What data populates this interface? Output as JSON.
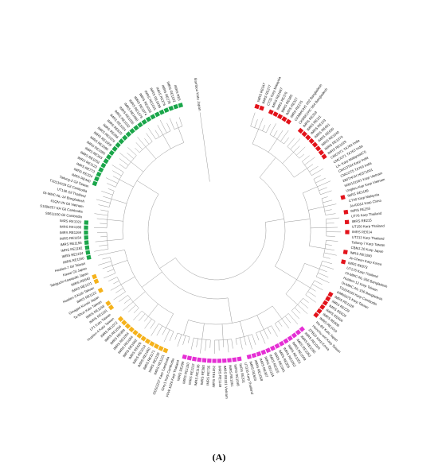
{
  "figure": {
    "panel_label": "(A)",
    "root_label": "Bamboo Katu Japan",
    "colors": {
      "green": "#1aa64a",
      "red": "#e3131b",
      "orange": "#f5b21b",
      "magenta": "#e52fd4",
      "branch": "#8c8c8c",
      "text": "#1a1a1a"
    },
    "leaves": [
      {
        "label": "IMRS RE347",
        "marker": "red"
      },
      {
        "label": "IMRS RE277",
        "marker": "red"
      },
      {
        "label": "CT32 Karp Malaysia",
        "marker": ""
      },
      {
        "label": "IMRS RE1067",
        "marker": "red"
      },
      {
        "label": "IMRS RE376",
        "marker": "red"
      },
      {
        "label": "IMRS RE385",
        "marker": "red"
      },
      {
        "label": "IMRS RE327",
        "marker": "red"
      },
      {
        "label": "IMRS RE275",
        "marker": "red"
      },
      {
        "label": "CKMMC/HC 002 Bangladesh",
        "marker": ""
      },
      {
        "label": "CKMMC/HC 004 Bangladesh",
        "marker": ""
      },
      {
        "label": "IMRS RE318",
        "marker": "red"
      },
      {
        "label": "IMRS RE111",
        "marker": "red"
      },
      {
        "label": "IMRS RE103",
        "marker": "red"
      },
      {
        "label": "IMRS RE601",
        "marker": "red"
      },
      {
        "label": "IMRS RE630",
        "marker": "red"
      },
      {
        "label": "IMRS RE1040",
        "marker": "red"
      },
      {
        "label": "IMRS RE1079",
        "marker": "red"
      },
      {
        "label": "IMRS RE1029",
        "marker": "red"
      },
      {
        "label": "CMCOT1 TA763 India",
        "marker": ""
      },
      {
        "label": "CMCOT1 TA763 India",
        "marker": ""
      },
      {
        "label": "LA- Karp Malaysia(CI)",
        "marker": ""
      },
      {
        "label": "CMCOT04 Karp India",
        "marker": ""
      },
      {
        "label": "CMCOT5 TA763 India",
        "marker": ""
      },
      {
        "label": "280TH/JH H0371001",
        "marker": ""
      },
      {
        "label": "S06/101001 Karp Vietnam",
        "marker": ""
      },
      {
        "label": "Ungkeu Kep Karp Vietnam",
        "marker": ""
      },
      {
        "label": "IMRS RE1189",
        "marker": "red"
      },
      {
        "label": "CT40 Karp Malaysia",
        "marker": ""
      },
      {
        "label": "Ja-ID012 Karp China",
        "marker": ""
      },
      {
        "label": "IMRS RE255",
        "marker": "red"
      },
      {
        "label": "UT76 Karp Thailand",
        "marker": ""
      },
      {
        "label": "IMRS RE215",
        "marker": "red"
      },
      {
        "label": "UT150 Karp Thailand",
        "marker": ""
      },
      {
        "label": "IMRS RE614",
        "marker": "red"
      },
      {
        "label": "UT213 Karp Thailand",
        "marker": ""
      },
      {
        "label": "Tailung-7 Karp Taiwan",
        "marker": ""
      },
      {
        "label": "CBMJ-20 Karp Japan",
        "marker": ""
      },
      {
        "label": "IMRS RE1090",
        "marker": "red"
      },
      {
        "label": "Je-Cheon Karp Korea",
        "marker": ""
      },
      {
        "label": "IMRS RE873",
        "marker": "red"
      },
      {
        "label": "UT176 Karp Thailand",
        "marker": ""
      },
      {
        "label": "Ot-MMC-NL-266 Bangladesh",
        "marker": ""
      },
      {
        "label": "Hualien-12 Karp Taiwan",
        "marker": ""
      },
      {
        "label": "Ot-MMC-NL-156 Bangladesh",
        "marker": ""
      },
      {
        "label": "TG224193 Karp Cambodia",
        "marker": ""
      },
      {
        "label": "KMN0075 Karp Taiwan",
        "marker": ""
      },
      {
        "label": "IMRS RE1128",
        "marker": "red"
      },
      {
        "label": "IMRS RE229",
        "marker": "red"
      },
      {
        "label": "IMRS RE629",
        "marker": "red"
      },
      {
        "label": "IMRS RE604",
        "marker": "red"
      },
      {
        "label": "IMRS RE606",
        "marker": "red"
      },
      {
        "label": "IMRS RE1019",
        "marker": "red"
      },
      {
        "label": "Irie-B2 Kato Japan",
        "marker": ""
      },
      {
        "label": "Hsinchu-wirl Karp Taiwan",
        "marker": ""
      },
      {
        "label": "ZPB20 Karp Korea",
        "marker": ""
      },
      {
        "label": "IMRS RE1054",
        "marker": "magenta"
      },
      {
        "label": "IMRS RE1055",
        "marker": "magenta"
      },
      {
        "label": "IMRS RE1053",
        "marker": "magenta"
      },
      {
        "label": "IMRS RE1049",
        "marker": "magenta"
      },
      {
        "label": "IMRS RE1051",
        "marker": "magenta"
      },
      {
        "label": "IMRS RE1052",
        "marker": "magenta"
      },
      {
        "label": "IMRS RE305",
        "marker": "magenta"
      },
      {
        "label": "IMRS RE1061",
        "marker": "magenta"
      },
      {
        "label": "IMRS RE325",
        "marker": "magenta"
      },
      {
        "label": "IMRS RE1184",
        "marker": "magenta"
      },
      {
        "label": "IMRS RE307",
        "marker": "magenta"
      },
      {
        "label": "IMRS RE1058",
        "marker": "magenta"
      },
      {
        "label": "IMRS RE603",
        "marker": "magenta"
      },
      {
        "label": "UT316 Karp Thailand",
        "marker": ""
      },
      {
        "label": "IMRS RE331",
        "marker": "magenta"
      },
      {
        "label": "IMRS RE1048",
        "marker": "magenta"
      },
      {
        "label": "IMRS RE1061",
        "marker": "magenta"
      },
      {
        "label": "IMRS RE331 Vietnam",
        "marker": "magenta"
      },
      {
        "label": "IMRS RE1149",
        "marker": "magenta"
      },
      {
        "label": "IMRS RE1052",
        "marker": "magenta"
      },
      {
        "label": "IMRS RE735",
        "marker": "magenta"
      },
      {
        "label": "IMRS RE380",
        "marker": "magenta"
      },
      {
        "label": "IMRS RE1136",
        "marker": "magenta"
      },
      {
        "label": "IMRS RE1112",
        "marker": "magenta"
      },
      {
        "label": "IMRS RE1150",
        "marker": "magenta"
      },
      {
        "label": "IMRS RE299",
        "marker": "magenta"
      },
      {
        "label": "FPW-1026 Karp Thailand",
        "marker": ""
      },
      {
        "label": "Grey1 Karp Cambodia",
        "marker": ""
      },
      {
        "label": "GDSG237 Karp Cambodia",
        "marker": ""
      },
      {
        "label": "IMRS RE1121",
        "marker": "orange"
      },
      {
        "label": "IMRS RE1120",
        "marker": "orange"
      },
      {
        "label": "IMRS RE1171",
        "marker": "orange"
      },
      {
        "label": "IMRS RE1060",
        "marker": "orange"
      },
      {
        "label": "IMRS RE1014",
        "marker": "orange"
      },
      {
        "label": "IMRS RE626",
        "marker": "orange"
      },
      {
        "label": "IMRS RE1062",
        "marker": "orange"
      },
      {
        "label": "IMRS RE1064",
        "marker": "orange"
      },
      {
        "label": "IMRS RE1004",
        "marker": "orange"
      },
      {
        "label": "IMRS RE988",
        "marker": "orange"
      },
      {
        "label": "IMRS RE1034",
        "marker": "orange"
      },
      {
        "label": "IMRS RE1072",
        "marker": "orange"
      },
      {
        "label": "Hualien-4 Kato Taiwan",
        "marker": ""
      },
      {
        "label": "LF1 Kato Taiwan",
        "marker": ""
      },
      {
        "label": "IMRS RE1161",
        "marker": "orange"
      },
      {
        "label": "IMRS RE1156",
        "marker": "orange"
      },
      {
        "label": "Ta-Shun Kato Taiwan",
        "marker": ""
      },
      {
        "label": "Omagari Kuroki Japan",
        "marker": ""
      },
      {
        "label": "IMRS RE1122",
        "marker": "orange"
      },
      {
        "label": "Hualien-3 Kuth Taiwan",
        "marker": ""
      },
      {
        "label": "IMRS RE1121",
        "marker": "orange"
      },
      {
        "label": "IMRS RE640",
        "marker": "orange"
      },
      {
        "label": "Takiguchi Kawasaki Japan",
        "marker": ""
      },
      {
        "label": "Kawai Gil Japan",
        "marker": ""
      },
      {
        "label": "Hualien-7 Gil Taiwan",
        "marker": ""
      },
      {
        "label": "IMRS RE1160",
        "marker": "green"
      },
      {
        "label": "IMRS RE1164",
        "marker": "green"
      },
      {
        "label": "IMRS RE1182",
        "marker": "green"
      },
      {
        "label": "IMRS RE1155",
        "marker": "green"
      },
      {
        "label": "IMRS RE1154",
        "marker": "green"
      },
      {
        "label": "IMRS RE1169",
        "marker": "green"
      },
      {
        "label": "IMRS RE1166",
        "marker": "green"
      },
      {
        "label": "IMRS RE1022",
        "marker": "green"
      },
      {
        "label": "S0611100 Gil Cambodia",
        "marker": ""
      },
      {
        "label": "S1006257 KH Gil Cambodia",
        "marker": ""
      },
      {
        "label": "61QN VN Gil Vietnam",
        "marker": ""
      },
      {
        "label": "Ot-MMC-NL-14 Bangladesh",
        "marker": ""
      },
      {
        "label": "UT196 Gil Thailand",
        "marker": ""
      },
      {
        "label": "T1013/4/29 Gil Cambodia",
        "marker": ""
      },
      {
        "label": "Taitung-2 Gil Taiwan",
        "marker": ""
      },
      {
        "label": "IMRS RE440",
        "marker": "green"
      },
      {
        "label": "IMRS RE324",
        "marker": "green"
      },
      {
        "label": "IMRS RE773",
        "marker": "green"
      },
      {
        "label": "IMRS RE1123",
        "marker": "green"
      },
      {
        "label": "IMRS RE1052",
        "marker": "green"
      },
      {
        "label": "IMRS RE343",
        "marker": "green"
      },
      {
        "label": "IMRS RE1095",
        "marker": "green"
      },
      {
        "label": "IMRS RE1096",
        "marker": "green"
      },
      {
        "label": "IMRS RE1059",
        "marker": "green"
      },
      {
        "label": "IMRS RE1076",
        "marker": "green"
      },
      {
        "label": "IMRS RE286",
        "marker": "green"
      },
      {
        "label": "IMRS RE625",
        "marker": "green"
      },
      {
        "label": "IMRS RE1024",
        "marker": "green"
      },
      {
        "label": "IMRS RE1032",
        "marker": "green"
      },
      {
        "label": "IMRS RE1035",
        "marker": "green"
      },
      {
        "label": "IMRS RE1060",
        "marker": "green"
      },
      {
        "label": "IMRS RE1078",
        "marker": "green"
      },
      {
        "label": "IMRS RE1074",
        "marker": "green"
      },
      {
        "label": "IMRS RE1033",
        "marker": "green"
      },
      {
        "label": "IMRS RE1025",
        "marker": "green"
      },
      {
        "label": "IMRS RE1039",
        "marker": "green"
      },
      {
        "label": "IMRS RE276",
        "marker": "green"
      },
      {
        "label": "IMRS RE278",
        "marker": "green"
      },
      {
        "label": "IMRS RE1182",
        "marker": "green"
      },
      {
        "label": "IMRS RE5",
        "marker": "green"
      }
    ]
  }
}
